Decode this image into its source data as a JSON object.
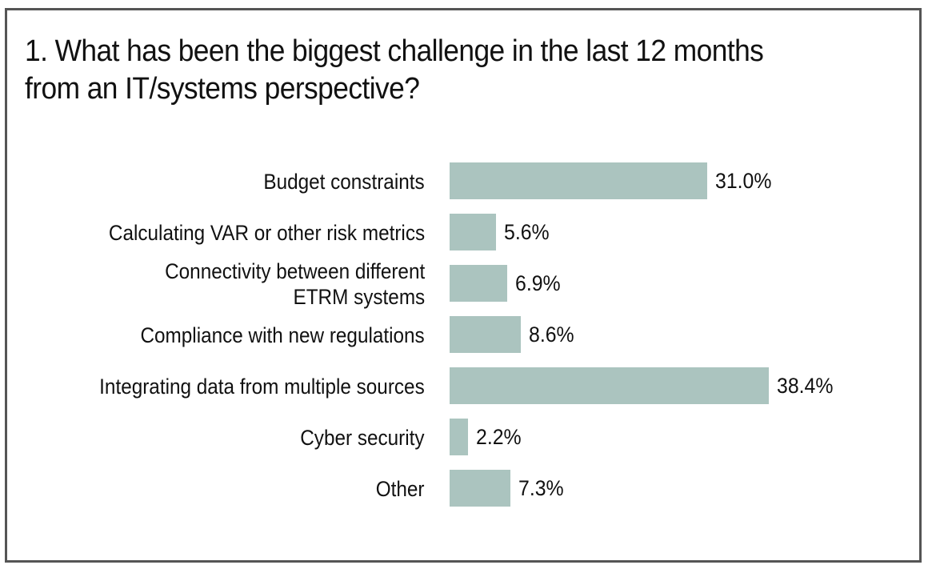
{
  "chart_data": {
    "type": "bar",
    "orientation": "horizontal",
    "title": "1. What has been the biggest challenge in the last 12 months from an IT/systems perspective?",
    "title_lines": [
      "1. What has been the biggest challenge in the last 12 months",
      "from an IT/systems perspective?"
    ],
    "categories": [
      "Budget constraints",
      "Calculating VAR or other risk metrics",
      "Connectivity between different ETRM systems",
      "Compliance with new regulations",
      "Integrating data from multiple sources",
      "Cyber security",
      "Other"
    ],
    "category_lines": [
      [
        "Budget constraints"
      ],
      [
        "Calculating VAR or other risk metrics"
      ],
      [
        "Connectivity between different",
        "ETRM systems"
      ],
      [
        "Compliance with new regulations"
      ],
      [
        "Integrating data from multiple sources"
      ],
      [
        "Cyber security"
      ],
      [
        "Other"
      ]
    ],
    "values": [
      31.0,
      5.6,
      6.9,
      8.6,
      38.4,
      2.2,
      7.3
    ],
    "value_labels": [
      "31.0%",
      "5.6%",
      "6.9%",
      "8.6%",
      "38.4%",
      "2.2%",
      "7.3%"
    ],
    "unit": "%",
    "xlabel": "",
    "ylabel": "",
    "xlim": [
      0,
      40
    ],
    "grid": false,
    "legend": "none",
    "bar_color": "#abc4bf"
  }
}
